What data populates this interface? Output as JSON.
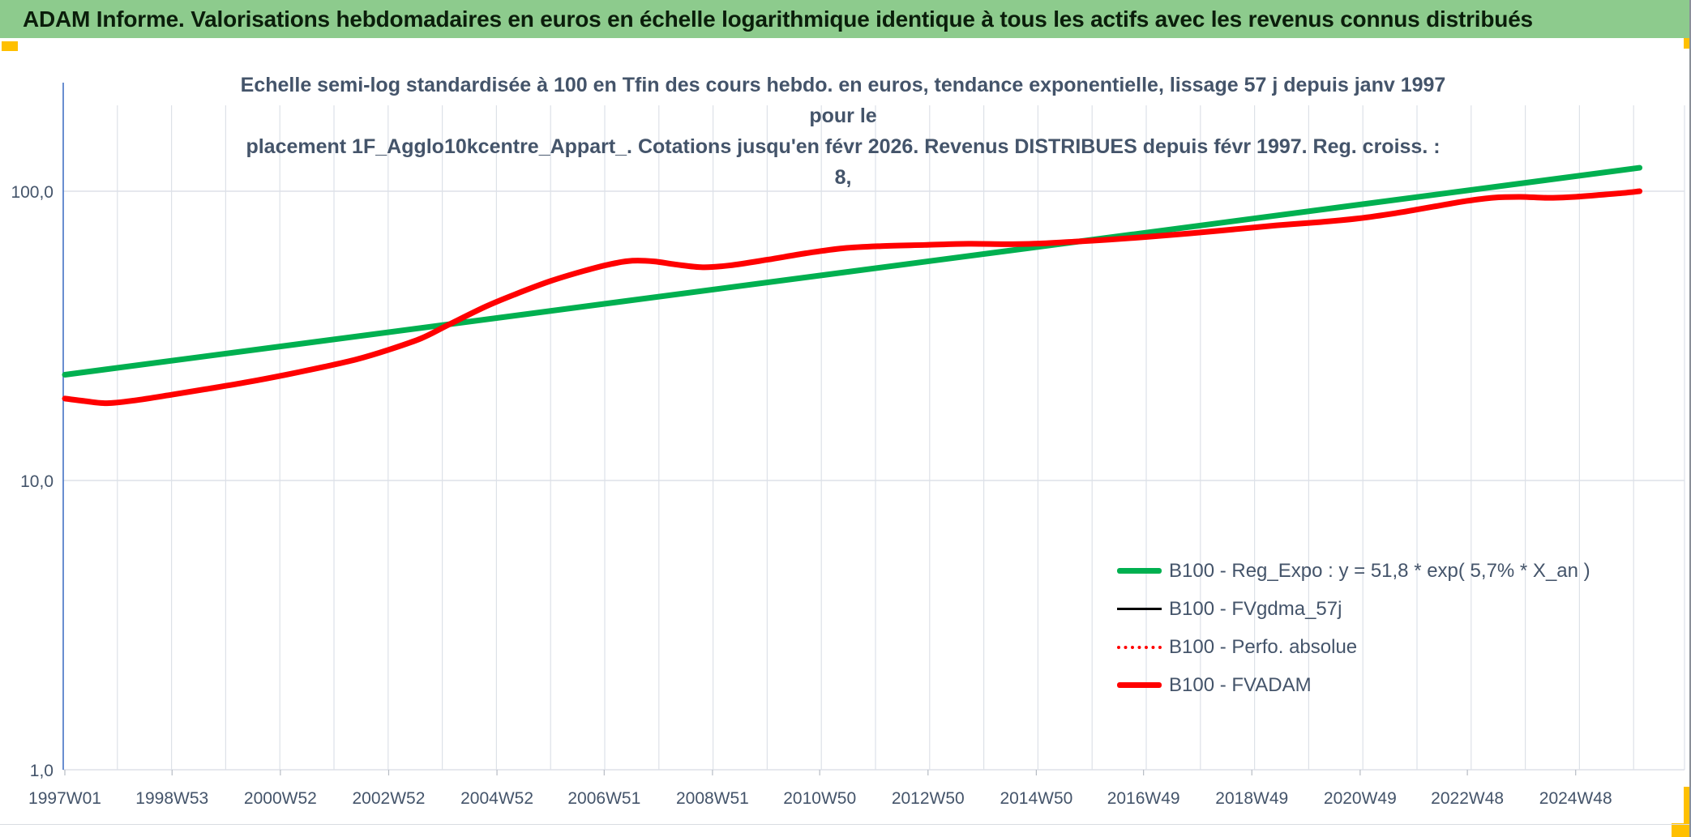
{
  "header": {
    "title": "ADAM Informe. Valorisations hebdomadaires en euros en échelle logarithmique identique à tous les actifs avec les revenus connus distribués"
  },
  "subtitle": {
    "line1": "Echelle semi-log standardisée à 100 en Tfin des cours hebdo. en euros, tendance exponentielle, lissage 57 j depuis janv 1997 pour le",
    "line2": "placement 1F_Agglo10kcentre_Appart_. Cotations jusqu'en févr 2026. Revenus DISTRIBUES depuis févr 1997. Reg. croiss. : 8,"
  },
  "colors": {
    "header_background": "#8dcb8d",
    "header_text": "#0b1e0b",
    "accent_orange": "#ffc000",
    "trend_green": "#00B050",
    "series_red": "#FF0000",
    "series_black": "#000000",
    "axis_blue": "#4472c4",
    "gridline": "#dde1e8",
    "text_blue_gray": "#44546a"
  },
  "legend": {
    "items": [
      {
        "label": "B100 - Reg_Expo : y = 51,8 * exp( 5,7% *  X_an )",
        "swatch": "green-solid"
      },
      {
        "label": "B100 - FVgdma_57j",
        "swatch": "black-solid"
      },
      {
        "label": "B100 - Perfo. absolue",
        "swatch": "red-dotted"
      },
      {
        "label": "B100 - FVADAM",
        "swatch": "red-solid"
      }
    ]
  },
  "chart_data": {
    "type": "line",
    "y_scale": "log10",
    "ylim": [
      1,
      200
    ],
    "grid": "on",
    "legend_position": "inside lower right",
    "y_ticks": [
      {
        "label": "100,0",
        "value": 100
      },
      {
        "label": "10,0",
        "value": 10
      },
      {
        "label": "1,0",
        "value": 1
      }
    ],
    "x_ticks": [
      {
        "label": "1997W01",
        "year": 1997.02
      },
      {
        "label": "1998W53",
        "year": 1999.0
      },
      {
        "label": "2000W52",
        "year": 2001.0
      },
      {
        "label": "2002W52",
        "year": 2003.0
      },
      {
        "label": "2004W52",
        "year": 2005.0
      },
      {
        "label": "2006W51",
        "year": 2006.98
      },
      {
        "label": "2008W51",
        "year": 2008.98
      },
      {
        "label": "2010W50",
        "year": 2010.96
      },
      {
        "label": "2012W50",
        "year": 2012.96
      },
      {
        "label": "2014W50",
        "year": 2014.96
      },
      {
        "label": "2016W49",
        "year": 2016.94
      },
      {
        "label": "2018W49",
        "year": 2018.94
      },
      {
        "label": "2020W49",
        "year": 2020.94
      },
      {
        "label": "2022W48",
        "year": 2022.92
      },
      {
        "label": "2024W48",
        "year": 2024.92
      }
    ],
    "x_range_years": [
      1997.02,
      2026.9
    ],
    "x_gridline_interval_years": 1,
    "series": [
      {
        "name": "B100 - Reg_Expo",
        "color": "#00B050",
        "style": "solid",
        "width": 7,
        "note": "exponential trend, straight on log scale: y = 51,8 * exp( 5,7% * X_an )",
        "points": [
          [
            1997.02,
            23.2
          ],
          [
            2026.1,
            120.5
          ]
        ]
      },
      {
        "name": "B100 - FVgdma_57j",
        "color": "#000000",
        "style": "solid",
        "width": 3,
        "note": "57-day smoothed valuation; visually coincides with B100 - FVADAM and is hidden beneath it",
        "points_ref": "B100 - FVADAM"
      },
      {
        "name": "B100 - Perfo. absolue",
        "color": "#FF0000",
        "style": "dotted",
        "width": 2.5,
        "note": "absolute performance; visually coincides with B100 - FVADAM and is hidden beneath it",
        "points_ref": "B100 - FVADAM"
      },
      {
        "name": "B100 - FVADAM",
        "color": "#FF0000",
        "style": "solid",
        "width": 7,
        "note": "weekly valuation standardized to 100 at final date (févr 2026); approximate anchor points read from chart",
        "points": [
          [
            1997.02,
            19.2
          ],
          [
            1997.4,
            18.8
          ],
          [
            1997.8,
            18.5
          ],
          [
            1998.3,
            18.9
          ],
          [
            1999.0,
            19.8
          ],
          [
            1999.7,
            20.8
          ],
          [
            2000.4,
            21.9
          ],
          [
            2001.1,
            23.2
          ],
          [
            2001.8,
            24.7
          ],
          [
            2002.4,
            26.2
          ],
          [
            2003.0,
            28.3
          ],
          [
            2003.6,
            31.0
          ],
          [
            2004.1,
            34.5
          ],
          [
            2004.8,
            40.0
          ],
          [
            2005.4,
            44.5
          ],
          [
            2006.0,
            49.0
          ],
          [
            2006.6,
            53.0
          ],
          [
            2007.1,
            56.0
          ],
          [
            2007.5,
            57.5
          ],
          [
            2007.9,
            57.2
          ],
          [
            2008.3,
            55.8
          ],
          [
            2008.8,
            54.6
          ],
          [
            2009.3,
            55.4
          ],
          [
            2010.0,
            58.0
          ],
          [
            2010.7,
            61.0
          ],
          [
            2011.4,
            63.5
          ],
          [
            2012.1,
            64.6
          ],
          [
            2012.9,
            65.2
          ],
          [
            2013.7,
            65.8
          ],
          [
            2014.4,
            65.6
          ],
          [
            2015.0,
            65.9
          ],
          [
            2015.7,
            67.0
          ],
          [
            2016.3,
            68.0
          ],
          [
            2017.0,
            69.5
          ],
          [
            2017.8,
            71.5
          ],
          [
            2018.6,
            73.8
          ],
          [
            2019.4,
            76.2
          ],
          [
            2020.2,
            78.2
          ],
          [
            2020.9,
            80.5
          ],
          [
            2021.6,
            84.0
          ],
          [
            2022.3,
            88.5
          ],
          [
            2022.9,
            92.5
          ],
          [
            2023.4,
            95.0
          ],
          [
            2023.9,
            95.6
          ],
          [
            2024.4,
            94.9
          ],
          [
            2024.9,
            95.6
          ],
          [
            2025.4,
            97.2
          ],
          [
            2025.8,
            98.6
          ],
          [
            2026.1,
            100.0
          ]
        ]
      }
    ]
  }
}
